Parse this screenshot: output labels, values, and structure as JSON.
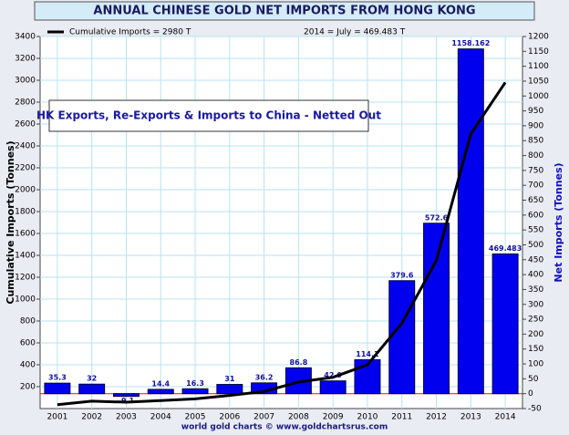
{
  "chart_data": {
    "type": "bar",
    "title": "ANNUAL CHINESE GOLD NET IMPORTS FROM HONG KONG",
    "y_label": "Cumulative Imports (Tonnes)",
    "y2_label": "Net Imports (Tonnes)",
    "source": "world gold charts © www.goldchartsrus.com",
    "annotations": [
      "HK Exports, Re-Exports & Imports to China - Netted Out",
      "2014 = July = 469.483 T"
    ],
    "categories": [
      "2001",
      "2002",
      "2003",
      "2004",
      "2005",
      "2006",
      "2007",
      "2008",
      "2009",
      "2010",
      "2011",
      "2012",
      "2013",
      "2014"
    ],
    "series": [
      {
        "name": "Net Imports",
        "type": "bar",
        "axis": "y2",
        "color": "#0000ee",
        "values": [
          35.3,
          32,
          -9.1,
          14.4,
          16.3,
          31,
          36.2,
          86.8,
          42.9,
          114.1,
          379.6,
          572.6,
          1158.162,
          469.483
        ]
      },
      {
        "name": "Cumulative Imports = 2980 T",
        "type": "line",
        "axis": "y",
        "color": "#000000",
        "values": [
          35.3,
          67.3,
          58.2,
          72.6,
          88.9,
          119.9,
          156.1,
          242.9,
          285.8,
          399.9,
          779.5,
          1352.1,
          2510.3,
          2979.8
        ]
      }
    ],
    "ylim": [
      0,
      3400
    ],
    "yticks": [
      200,
      400,
      600,
      800,
      1000,
      1200,
      1400,
      1600,
      1800,
      2000,
      2200,
      2400,
      2600,
      2800,
      3000,
      3200,
      3400
    ],
    "y2lim": [
      -50,
      1200
    ],
    "y2ticks": [
      -50,
      0,
      50,
      100,
      150,
      200,
      250,
      300,
      350,
      400,
      450,
      500,
      550,
      600,
      650,
      700,
      750,
      800,
      850,
      900,
      950,
      1000,
      1050,
      1100,
      1150,
      1200
    ],
    "grid": true
  }
}
